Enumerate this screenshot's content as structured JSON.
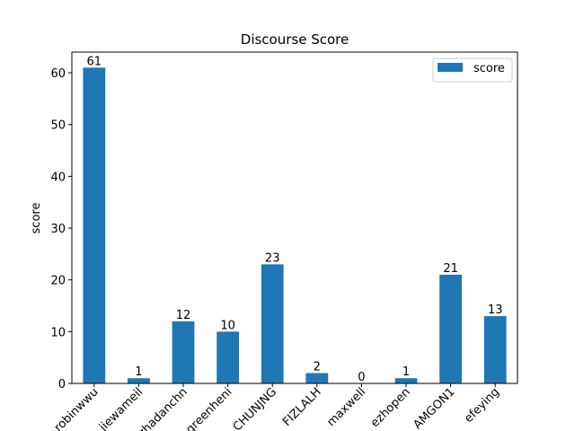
{
  "chart_data": {
    "type": "bar",
    "title": "Discourse Score",
    "xlabel": "",
    "ylabel": "score",
    "categories": [
      "robinwwu",
      "jiewameil",
      "zhadanchn",
      "greenheni",
      "CHUNJNG",
      "FIZLALH",
      "maxwell",
      "ezhopen",
      "AMGON1",
      "efeying"
    ],
    "series": [
      {
        "name": "score",
        "values": [
          61,
          1,
          12,
          10,
          23,
          2,
          0,
          1,
          21,
          13
        ],
        "color": "#1f77b4"
      }
    ],
    "ylim": [
      0,
      64
    ],
    "yticks": [
      0,
      10,
      20,
      30,
      40,
      50,
      60
    ],
    "grid": false,
    "legend_position": "top-right"
  }
}
